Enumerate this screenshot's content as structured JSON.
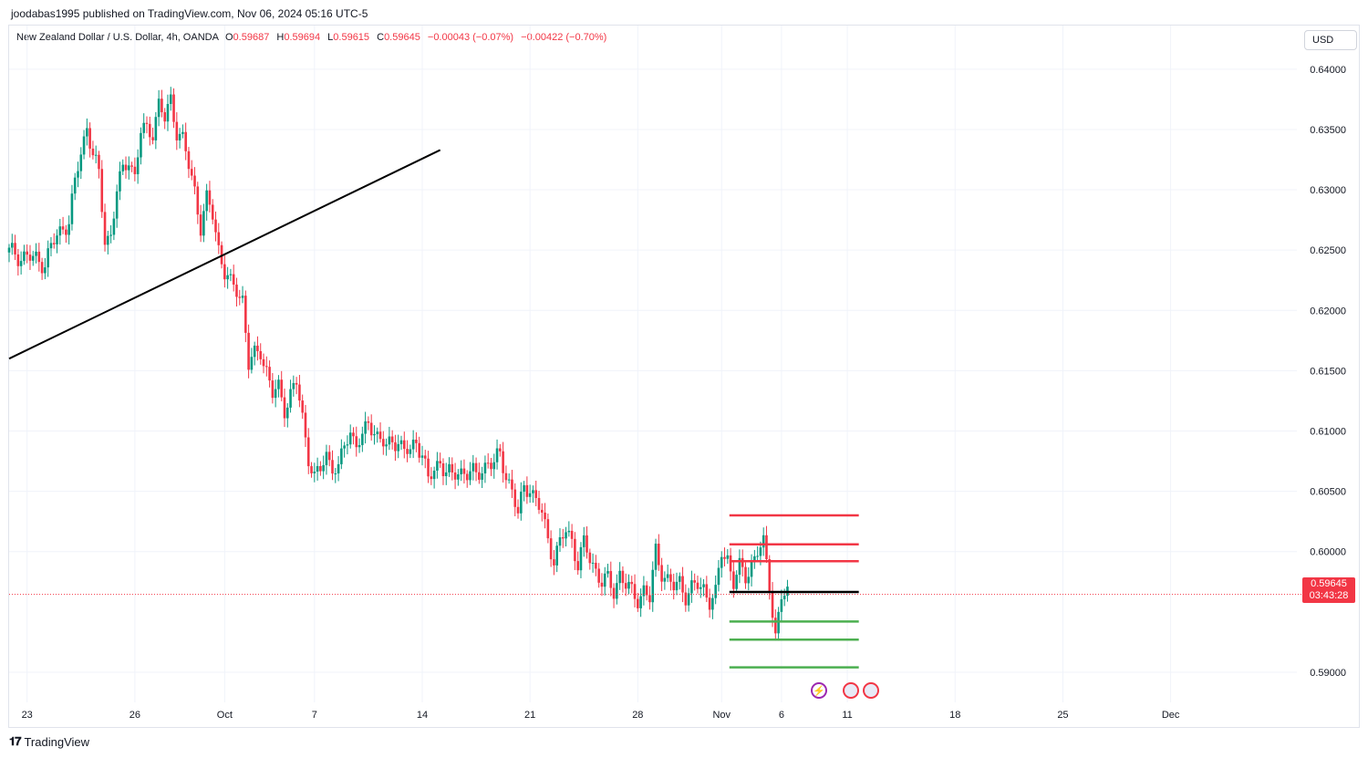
{
  "header": {
    "published": "joodabas1995 published on TradingView.com, Nov 06, 2024 05:16 UTC-5"
  },
  "legend": {
    "symbol": "New Zealand Dollar / U.S. Dollar, 4h, OANDA",
    "o_label": "O",
    "o_value": "0.59687",
    "h_label": "H",
    "h_value": "0.59694",
    "l_label": "L",
    "l_value": "0.59615",
    "c_label": "C",
    "c_value": "0.59645",
    "change": "−0.00043 (−0.07%)",
    "change2": "−0.00422 (−0.70%)"
  },
  "currency_button": "USD",
  "last_price": {
    "value": "0.59645",
    "countdown": "03:43:28"
  },
  "footer": {
    "brand": "TradingView"
  },
  "colors": {
    "up": "#089981",
    "down": "#f23645",
    "resistance": "#f23645",
    "support": "#4caf50",
    "trendline": "#000000"
  },
  "chart_data": {
    "type": "candlestick",
    "interval": "4h",
    "y_ticks": [
      "0.64000",
      "0.63500",
      "0.63000",
      "0.62500",
      "0.62000",
      "0.61500",
      "0.61000",
      "0.60500",
      "0.60000",
      "0.59000"
    ],
    "ylim": [
      0.5875,
      0.6415
    ],
    "x_ticks": [
      {
        "label": "23",
        "bar": 3
      },
      {
        "label": "26",
        "bar": 21
      },
      {
        "label": "Oct",
        "bar": 36
      },
      {
        "label": "7",
        "bar": 51
      },
      {
        "label": "14",
        "bar": 69
      },
      {
        "label": "21",
        "bar": 87
      },
      {
        "label": "28",
        "bar": 105
      },
      {
        "label": "Nov",
        "bar": 119
      },
      {
        "label": "6",
        "bar": 129
      },
      {
        "label": "11",
        "bar": 140
      },
      {
        "label": "18",
        "bar": 158
      },
      {
        "label": "25",
        "bar": 176
      },
      {
        "label": "Dec",
        "bar": 194
      }
    ],
    "close_path": [
      [
        0,
        0.6248
      ],
      [
        6,
        0.624
      ],
      [
        8,
        0.6262
      ],
      [
        10,
        0.6275
      ],
      [
        12,
        0.6332
      ],
      [
        13,
        0.6352
      ],
      [
        15,
        0.631
      ],
      [
        16,
        0.626
      ],
      [
        17,
        0.6262
      ],
      [
        18,
        0.63
      ],
      [
        20,
        0.6328
      ],
      [
        21,
        0.631
      ],
      [
        22,
        0.6348
      ],
      [
        24,
        0.635
      ],
      [
        25,
        0.637
      ],
      [
        26,
        0.6358
      ],
      [
        27,
        0.6375
      ],
      [
        28,
        0.635
      ],
      [
        29,
        0.634
      ],
      [
        31,
        0.63
      ],
      [
        32,
        0.627
      ],
      [
        33,
        0.629
      ],
      [
        34,
        0.628
      ],
      [
        35,
        0.6252
      ],
      [
        36,
        0.6232
      ],
      [
        37,
        0.622
      ],
      [
        38,
        0.6218
      ],
      [
        39,
        0.621
      ],
      [
        40,
        0.6155
      ],
      [
        42,
        0.6168
      ],
      [
        43,
        0.615
      ],
      [
        44,
        0.613
      ],
      [
        45,
        0.6135
      ],
      [
        46,
        0.612
      ],
      [
        48,
        0.614
      ],
      [
        49,
        0.611
      ],
      [
        50,
        0.608
      ],
      [
        51,
        0.606
      ],
      [
        52,
        0.6068
      ],
      [
        53,
        0.608
      ],
      [
        55,
        0.6065
      ],
      [
        56,
        0.609
      ],
      [
        57,
        0.6098
      ],
      [
        58,
        0.6092
      ],
      [
        59,
        0.609
      ],
      [
        60,
        0.611
      ],
      [
        61,
        0.6098
      ],
      [
        62,
        0.6096
      ],
      [
        63,
        0.6082
      ],
      [
        64,
        0.6095
      ],
      [
        66,
        0.6085
      ],
      [
        67,
        0.608
      ],
      [
        68,
        0.6095
      ],
      [
        69,
        0.608
      ],
      [
        70,
        0.606
      ],
      [
        71,
        0.6065
      ],
      [
        72,
        0.6078
      ],
      [
        73,
        0.6065
      ],
      [
        74,
        0.6062
      ],
      [
        76,
        0.6068
      ],
      [
        78,
        0.6062
      ],
      [
        80,
        0.6075
      ],
      [
        81,
        0.6072
      ],
      [
        82,
        0.608
      ],
      [
        83,
        0.6065
      ],
      [
        84,
        0.605
      ],
      [
        85,
        0.603
      ],
      [
        86,
        0.6053
      ],
      [
        87,
        0.6055
      ],
      [
        88,
        0.604
      ],
      [
        89,
        0.6032
      ],
      [
        90,
        0.601
      ],
      [
        91,
        0.5995
      ],
      [
        92,
        0.6005
      ],
      [
        93,
        0.6018
      ],
      [
        94,
        0.601
      ],
      [
        95,
        0.599
      ],
      [
        96,
        0.6005
      ],
      [
        97,
        0.5995
      ],
      [
        98,
        0.5985
      ],
      [
        99,
        0.5975
      ],
      [
        100,
        0.5975
      ],
      [
        101,
        0.5968
      ],
      [
        102,
        0.5982
      ],
      [
        103,
        0.5972
      ],
      [
        104,
        0.5965
      ],
      [
        105,
        0.5962
      ],
      [
        106,
        0.5968
      ],
      [
        107,
        0.596
      ],
      [
        108,
        0.6
      ],
      [
        109,
        0.5985
      ],
      [
        110,
        0.5975
      ],
      [
        111,
        0.597
      ],
      [
        112,
        0.5975
      ],
      [
        113,
        0.5965
      ],
      [
        114,
        0.5968
      ],
      [
        115,
        0.5972
      ],
      [
        116,
        0.597
      ],
      [
        117,
        0.596
      ],
      [
        118,
        0.5963
      ],
      [
        119,
        0.6
      ],
      [
        120,
        0.5995
      ],
      [
        121,
        0.5975
      ],
      [
        122,
        0.5985
      ],
      [
        123,
        0.598
      ],
      [
        124,
        0.599
      ],
      [
        125,
        0.6
      ],
      [
        126,
        0.6005
      ],
      [
        127,
        0.5975
      ],
      [
        128,
        0.593
      ],
      [
        129,
        0.5962
      ],
      [
        130,
        0.59645
      ]
    ],
    "trendline": [
      [
        0,
        0.616
      ],
      [
        72,
        0.6333
      ]
    ],
    "levels": {
      "resistance": [
        0.603,
        0.6006,
        0.5992
      ],
      "entry": 0.59665,
      "support": [
        0.5942,
        0.5927,
        0.5904
      ]
    },
    "levels_bar_range": [
      120,
      141
    ]
  }
}
